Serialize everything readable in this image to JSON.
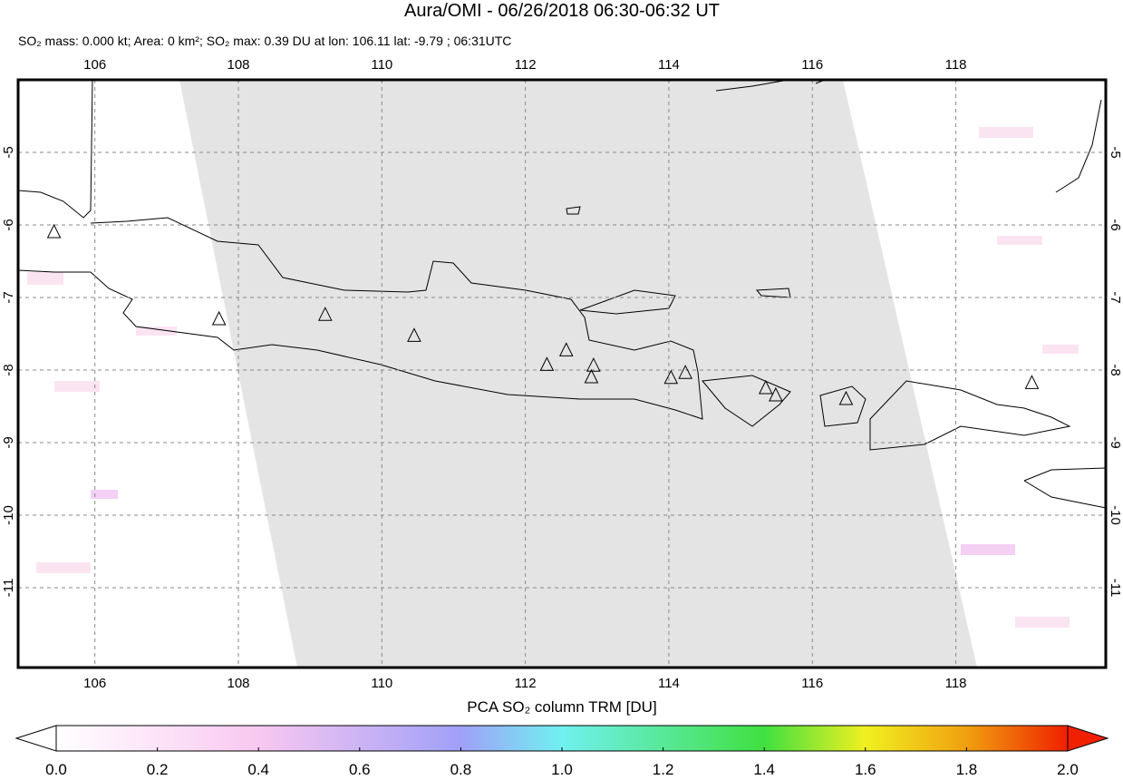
{
  "header": {
    "title": "Aura/OMI - 06/26/2018 06:30-06:32 UT",
    "subtitle": "SO₂ mass: 0.000 kt; Area: 0 km²; SO₂ max: 0.39 DU at lon: 106.11 lat: -9.79 ; 06:31UTC"
  },
  "map": {
    "xlim": [
      104.93,
      120.09
    ],
    "ylim": [
      -12.1,
      -4
    ],
    "xticks": [
      106,
      108,
      110,
      112,
      114,
      116,
      118
    ],
    "yticks": [
      -5,
      -6,
      -7,
      -8,
      -9,
      -10,
      -11
    ],
    "volcanoes": [
      {
        "lon": 105.43,
        "lat": -6.1
      },
      {
        "lon": 107.73,
        "lat": -7.3
      },
      {
        "lon": 109.21,
        "lat": -7.24
      },
      {
        "lon": 110.45,
        "lat": -7.53
      },
      {
        "lon": 112.3,
        "lat": -7.93
      },
      {
        "lon": 112.57,
        "lat": -7.73
      },
      {
        "lon": 112.95,
        "lat": -7.94
      },
      {
        "lon": 112.92,
        "lat": -8.1
      },
      {
        "lon": 114.03,
        "lat": -8.11
      },
      {
        "lon": 114.23,
        "lat": -8.04
      },
      {
        "lon": 115.35,
        "lat": -8.25
      },
      {
        "lon": 115.49,
        "lat": -8.35
      },
      {
        "lon": 116.47,
        "lat": -8.4
      },
      {
        "lon": 119.06,
        "lat": -8.18
      }
    ]
  },
  "colorbar": {
    "label": "PCA SO₂ column TRM [DU]",
    "lim": [
      0,
      2
    ],
    "ticks": [
      {
        "value": 0,
        "label": "0.0"
      },
      {
        "value": 0.2,
        "label": "0.2"
      },
      {
        "value": 0.4,
        "label": "0.4"
      },
      {
        "value": 0.6,
        "label": "0.6"
      },
      {
        "value": 0.8,
        "label": "0.8"
      },
      {
        "value": 1,
        "label": "1.0"
      },
      {
        "value": 1.2,
        "label": "1.2"
      },
      {
        "value": 1.4,
        "label": "1.4"
      },
      {
        "value": 1.6,
        "label": "1.6"
      },
      {
        "value": 1.8,
        "label": "1.8"
      },
      {
        "value": 2,
        "label": "2.0"
      }
    ]
  }
}
